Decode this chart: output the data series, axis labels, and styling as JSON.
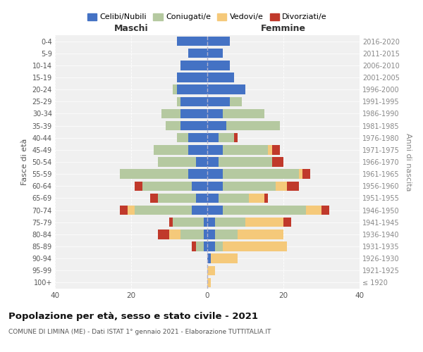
{
  "age_groups": [
    "100+",
    "95-99",
    "90-94",
    "85-89",
    "80-84",
    "75-79",
    "70-74",
    "65-69",
    "60-64",
    "55-59",
    "50-54",
    "45-49",
    "40-44",
    "35-39",
    "30-34",
    "25-29",
    "20-24",
    "15-19",
    "10-14",
    "5-9",
    "0-4"
  ],
  "birth_years": [
    "≤ 1920",
    "1921-1925",
    "1926-1930",
    "1931-1935",
    "1936-1940",
    "1941-1945",
    "1946-1950",
    "1951-1955",
    "1956-1960",
    "1961-1965",
    "1966-1970",
    "1971-1975",
    "1976-1980",
    "1981-1985",
    "1986-1990",
    "1991-1995",
    "1996-2000",
    "2001-2005",
    "2006-2010",
    "2011-2015",
    "2016-2020"
  ],
  "colors": {
    "celibi": "#4472C4",
    "coniugati": "#b5c9a0",
    "vedovi": "#f5c97a",
    "divorziati": "#c0392b",
    "background": "#f0f0f0"
  },
  "maschi": {
    "celibi": [
      0,
      0,
      0,
      1,
      1,
      1,
      4,
      3,
      4,
      5,
      3,
      5,
      5,
      7,
      7,
      7,
      8,
      8,
      7,
      5,
      8
    ],
    "coniugati": [
      0,
      0,
      0,
      2,
      6,
      8,
      15,
      10,
      13,
      18,
      10,
      9,
      3,
      4,
      5,
      1,
      1,
      0,
      0,
      0,
      0
    ],
    "vedovi": [
      0,
      0,
      0,
      0,
      3,
      0,
      2,
      0,
      0,
      0,
      0,
      0,
      0,
      0,
      0,
      0,
      0,
      0,
      0,
      0,
      0
    ],
    "divorziati": [
      0,
      0,
      0,
      1,
      3,
      1,
      2,
      2,
      2,
      0,
      0,
      0,
      0,
      0,
      0,
      0,
      0,
      0,
      0,
      0,
      0
    ]
  },
  "femmine": {
    "celibi": [
      0,
      0,
      1,
      2,
      2,
      2,
      4,
      3,
      4,
      4,
      3,
      4,
      3,
      5,
      4,
      6,
      10,
      7,
      6,
      4,
      6
    ],
    "coniugati": [
      0,
      0,
      0,
      2,
      6,
      8,
      22,
      8,
      14,
      20,
      14,
      12,
      4,
      14,
      11,
      3,
      0,
      0,
      0,
      0,
      0
    ],
    "vedovi": [
      1,
      2,
      7,
      17,
      12,
      10,
      4,
      4,
      3,
      1,
      0,
      1,
      0,
      0,
      0,
      0,
      0,
      0,
      0,
      0,
      0
    ],
    "divorziati": [
      0,
      0,
      0,
      0,
      0,
      2,
      2,
      1,
      3,
      2,
      3,
      2,
      1,
      0,
      0,
      0,
      0,
      0,
      0,
      0,
      0
    ]
  },
  "xlim": 40,
  "title": "Popolazione per età, sesso e stato civile - 2021",
  "subtitle": "COMUNE DI LIMINA (ME) - Dati ISTAT 1° gennaio 2021 - Elaborazione TUTTITALIA.IT",
  "ylabel_left": "Fasce di età",
  "ylabel_right": "Anni di nascita",
  "xlabel_maschi": "Maschi",
  "xlabel_femmine": "Femmine",
  "legend_labels": [
    "Celibi/Nubili",
    "Coniugati/e",
    "Vedovi/e",
    "Divorziati/e"
  ]
}
